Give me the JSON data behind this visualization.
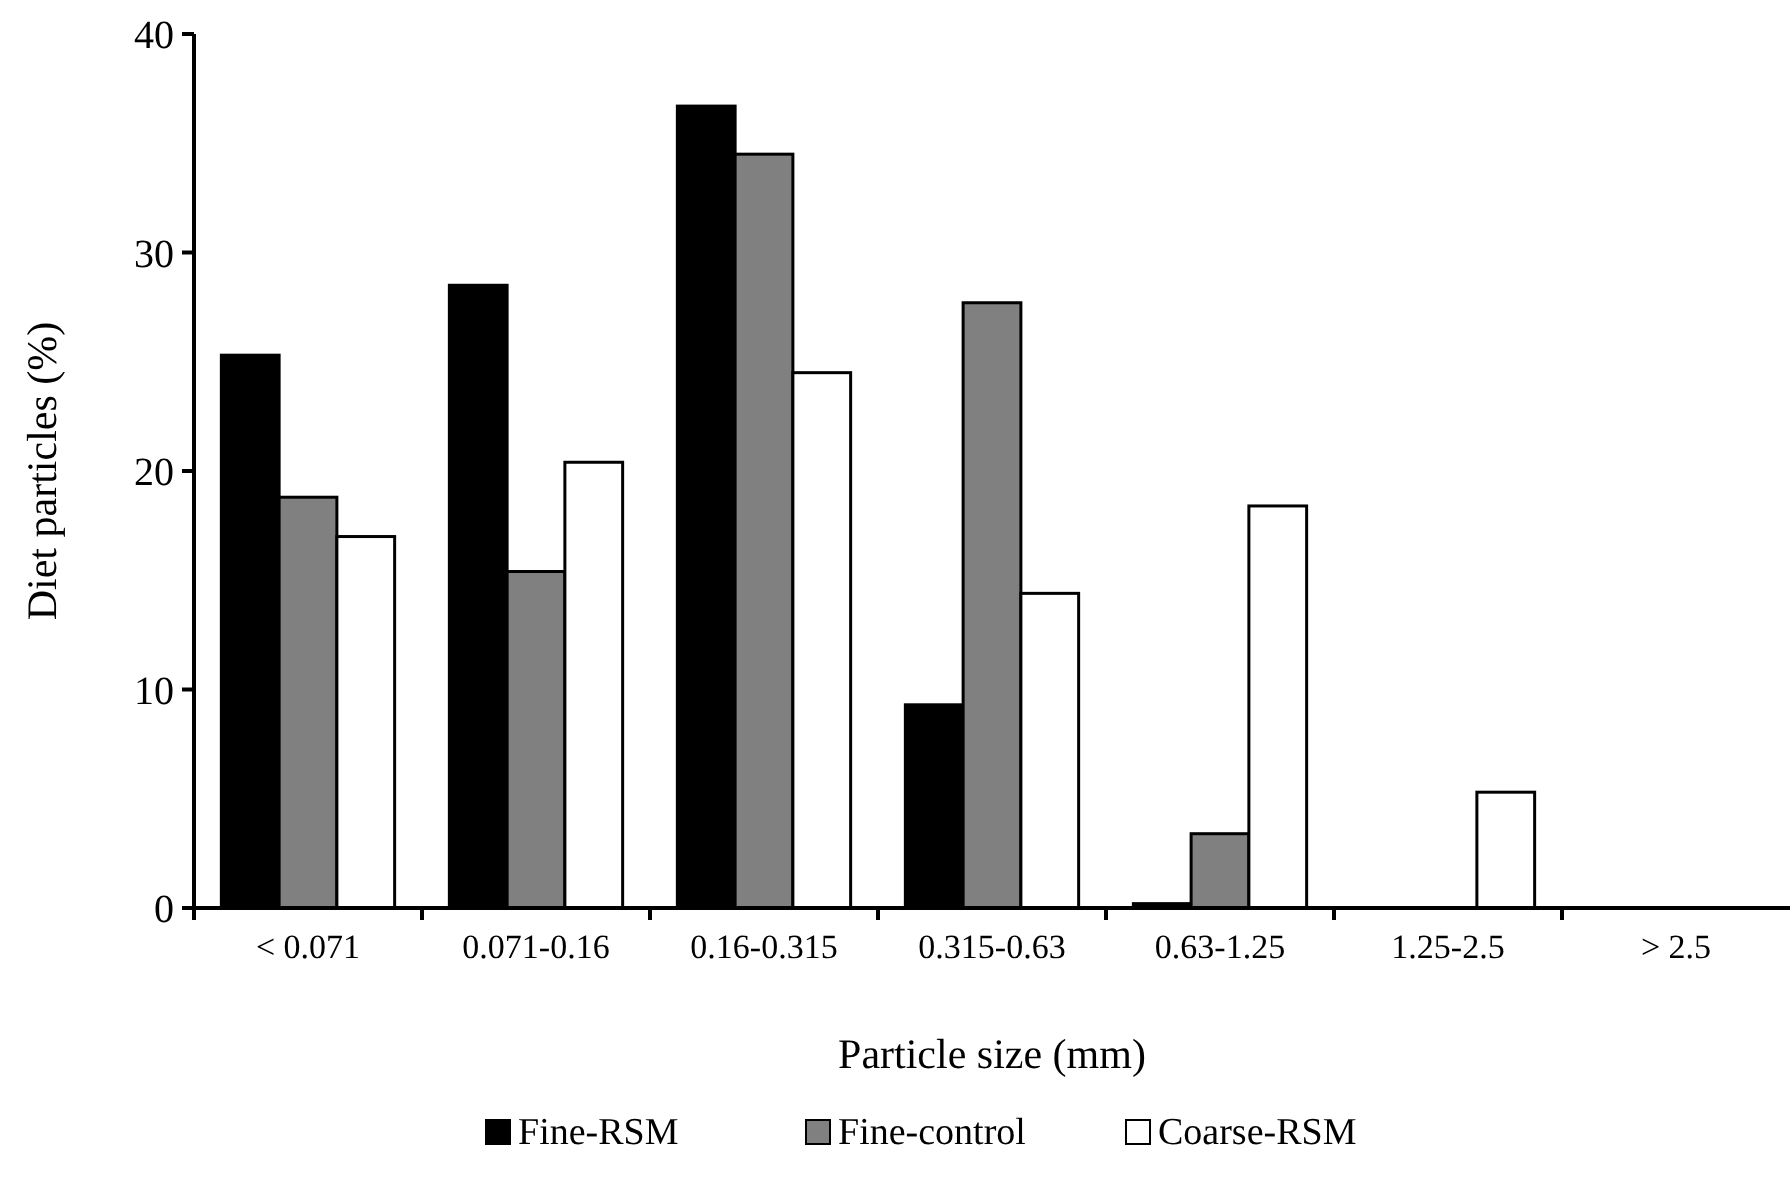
{
  "chart_data": {
    "type": "bar",
    "xlabel": "Particle size (mm)",
    "ylabel": "Diet particles (%)",
    "categories": [
      "< 0.071",
      "0.071-0.16",
      "0.16-0.315",
      "0.315-0.63",
      "0.63-1.25",
      "1.25-2.5",
      "> 2.5"
    ],
    "series": [
      {
        "name": "Fine-RSM",
        "color": "#000000",
        "values": [
          25.3,
          28.5,
          36.7,
          9.3,
          0.2,
          0,
          0
        ]
      },
      {
        "name": "Fine-control",
        "color": "#808080",
        "values": [
          18.8,
          15.4,
          34.5,
          27.7,
          3.4,
          0,
          0
        ]
      },
      {
        "name": "Coarse-RSM",
        "color": "#ffffff",
        "values": [
          17.0,
          20.4,
          24.5,
          14.4,
          18.4,
          5.3,
          0
        ]
      }
    ],
    "ylim": [
      0,
      40
    ],
    "yticks": [
      0,
      10,
      20,
      30,
      40
    ],
    "grid": false,
    "legend": "bottom"
  }
}
